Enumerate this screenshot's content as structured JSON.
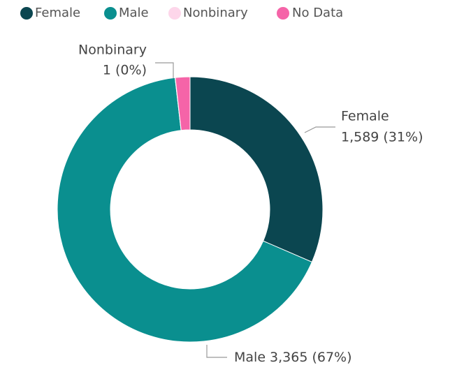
{
  "chart_data": {
    "type": "donut",
    "categories": [
      "Female",
      "Male",
      "Nonbinary",
      "No Data"
    ],
    "values": [
      1589,
      3365,
      1,
      90
    ],
    "value_labels": [
      "1,589 (31%)",
      "3,365 (67%)",
      "1 (0%)",
      null
    ],
    "colors": [
      "#0b4650",
      "#0a8f8f",
      "#fdd6ea",
      "#f564a8"
    ],
    "legend": "top"
  }
}
